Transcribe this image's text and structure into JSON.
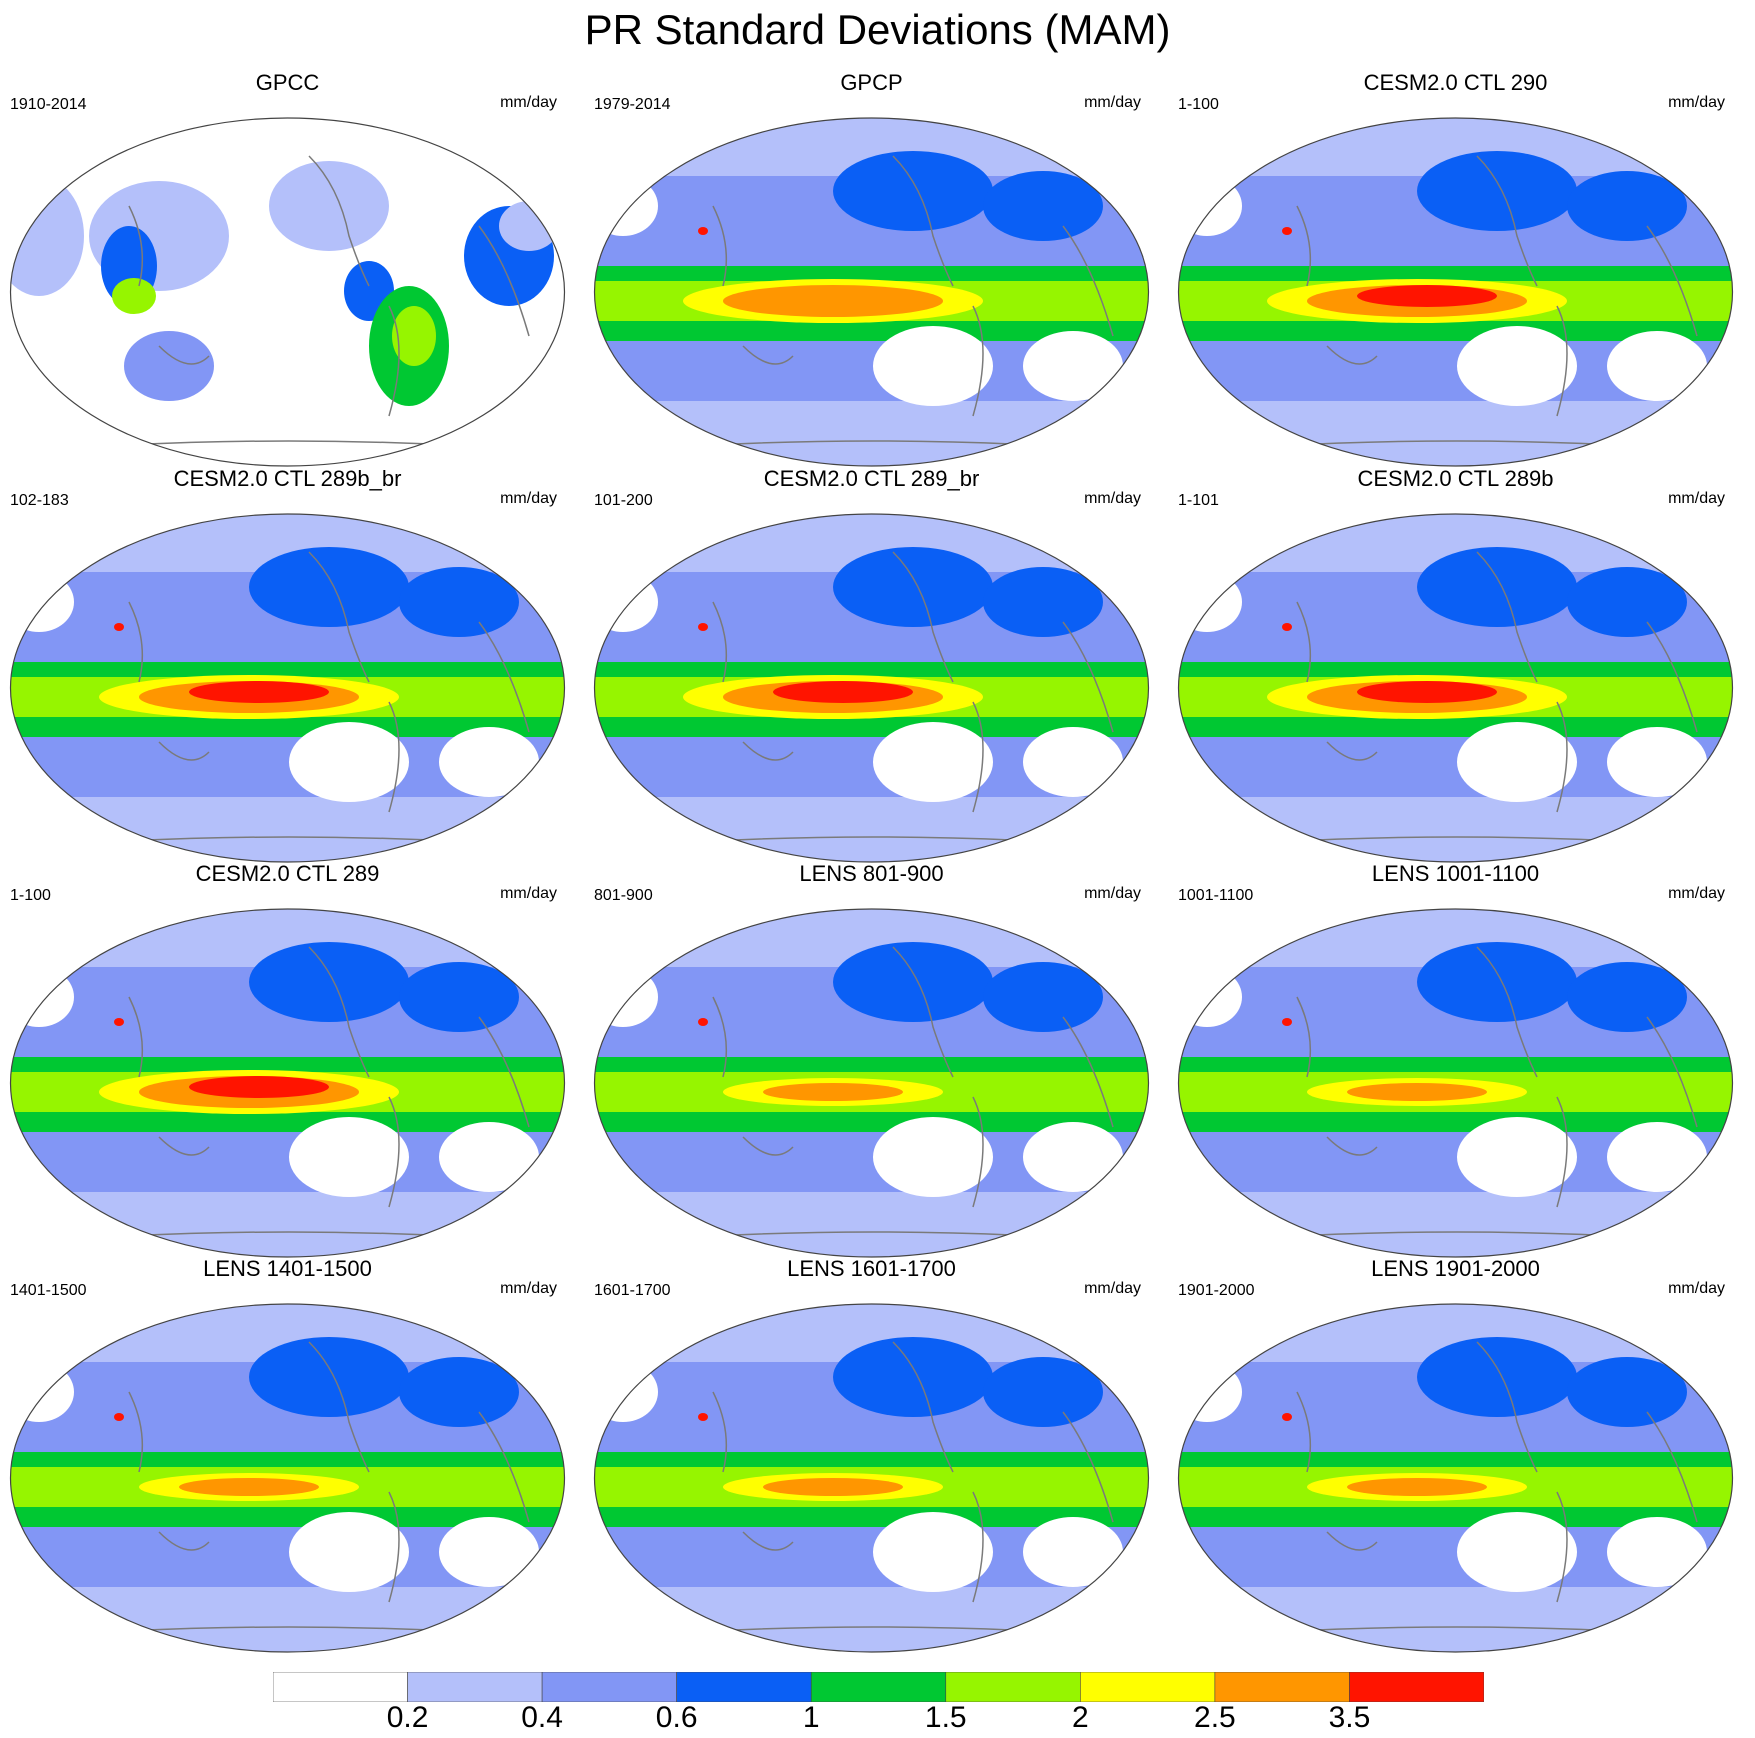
{
  "title": "PR Standard Deviations (MAM)",
  "units": "mm/day",
  "panels": [
    {
      "title": "GPCC",
      "period": "1910-2014",
      "style": "obs_land"
    },
    {
      "title": "GPCP",
      "period": "1979-2014",
      "style": "obs_global"
    },
    {
      "title": "CESM2.0 CTL 290",
      "period": "1-100",
      "style": "cesm_strong"
    },
    {
      "title": "CESM2.0 CTL 289b_br",
      "period": "102-183",
      "style": "cesm_strong"
    },
    {
      "title": "CESM2.0 CTL 289_br",
      "period": "101-200",
      "style": "cesm_strong"
    },
    {
      "title": "CESM2.0 CTL 289b",
      "period": "1-101",
      "style": "cesm_strong"
    },
    {
      "title": "CESM2.0 CTL 289",
      "period": "1-100",
      "style": "cesm_strong"
    },
    {
      "title": "LENS 801-900",
      "period": "801-900",
      "style": "lens"
    },
    {
      "title": "LENS 1001-1100",
      "period": "1001-1100",
      "style": "lens"
    },
    {
      "title": "LENS 1401-1500",
      "period": "1401-1500",
      "style": "lens"
    },
    {
      "title": "LENS 1601-1700",
      "period": "1601-1700",
      "style": "lens"
    },
    {
      "title": "LENS 1901-2000",
      "period": "1901-2000",
      "style": "lens"
    }
  ],
  "colorbar": {
    "colors": [
      "#ffffff",
      "#b4c0fa",
      "#8296f5",
      "#0a5ff5",
      "#00c832",
      "#96f500",
      "#ffff00",
      "#ff9600",
      "#ff1400"
    ],
    "labels": [
      "0.2",
      "0.4",
      "0.6",
      "1",
      "1.5",
      "2",
      "2.5",
      "3.5"
    ]
  }
}
